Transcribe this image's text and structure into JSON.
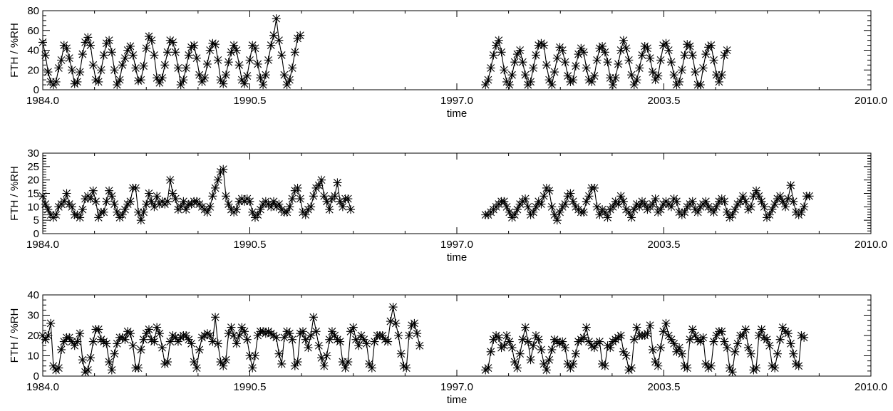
{
  "colors": {
    "line": "#000000",
    "marker": "#000000",
    "background": "#ffffff"
  },
  "chart_data": [
    {
      "type": "line",
      "marker": "asterisk",
      "xlabel": "time",
      "ylabel": "FTH / %RH",
      "xlim": [
        1984.0,
        2010.0
      ],
      "ylim": [
        0,
        80
      ],
      "xticks": [
        "1984.0",
        "1990.5",
        "1997.0",
        "2003.5",
        "2010.0"
      ],
      "yticks": [
        "0",
        "20",
        "40",
        "60",
        "80"
      ],
      "grid": false,
      "gap": [
        1997.1,
        1998.0
      ],
      "series": [
        {
          "x_start": 1984.0,
          "x_step": 0.0833,
          "segments": [
            {
              "start": 1984.0,
              "values": [
                48,
                35,
                18,
                8,
                5,
                8,
                22,
                30,
                45,
                42,
                32,
                20,
                6,
                8,
                18,
                36,
                48,
                53,
                45,
                25,
                10,
                8,
                20,
                35,
                47,
                50,
                38,
                20,
                5,
                10,
                25,
                32,
                40,
                44,
                35,
                22,
                9,
                10,
                24,
                42,
                54,
                50,
                35,
                12,
                7,
                12,
                25,
                38,
                50,
                48,
                38,
                22,
                5,
                10,
                22,
                35,
                43,
                45,
                32,
                15,
                8,
                12,
                26,
                40,
                47,
                46,
                30,
                10,
                6,
                15,
                28,
                38,
                45,
                40,
                25,
                10,
                6,
                14,
                30,
                45,
                42,
                26,
                12,
                5,
                15,
                30,
                45,
                55,
                72,
                50,
                35,
                15,
                5,
                10,
                22,
                38,
                52,
                55
              ]
            },
            {
              "start": 1997.9,
              "values": [
                5,
                10,
                22,
                35,
                45,
                50,
                38,
                20,
                8,
                5,
                15,
                28,
                36,
                40,
                28,
                15,
                5,
                8,
                22,
                35,
                45,
                47,
                45,
                25,
                10,
                5,
                18,
                32,
                43,
                40,
                28,
                14,
                8,
                10,
                24,
                36,
                42,
                38,
                22,
                10,
                8,
                14,
                30,
                42,
                44,
                38,
                28,
                12,
                5,
                12,
                26,
                40,
                50,
                42,
                30,
                15,
                5,
                10,
                22,
                35,
                44,
                42,
                32,
                18,
                10,
                14,
                30,
                45,
                47,
                40,
                28,
                15,
                5,
                8,
                20,
                35,
                46,
                44,
                35,
                18,
                5,
                5,
                22,
                36,
                43,
                45,
                30,
                15,
                8,
                15,
                35,
                40
              ]
            }
          ]
        }
      ]
    },
    {
      "type": "line",
      "marker": "asterisk",
      "xlabel": "time",
      "ylabel": "FTH / %RH",
      "xlim": [
        1984.0,
        2010.0
      ],
      "ylim": [
        0,
        30
      ],
      "xticks": [
        "1984.0",
        "1990.5",
        "1997.0",
        "2003.5",
        "2010.0"
      ],
      "yticks": [
        "0",
        "5",
        "10",
        "15",
        "20",
        "25",
        "30"
      ],
      "grid": false,
      "series": [
        {
          "segments": [
            {
              "start": 1984.0,
              "values": [
                14,
                11,
                9,
                7,
                6,
                7,
                10,
                11,
                12,
                15,
                11,
                10,
                7,
                7,
                6,
                9,
                13,
                14,
                13,
                16,
                12,
                6,
                8,
                8,
                12,
                16,
                14,
                11,
                8,
                6,
                7,
                9,
                11,
                12,
                17,
                17,
                8,
                5,
                8,
                11,
                15,
                12,
                10,
                14,
                11,
                12,
                11,
                12,
                20,
                15,
                13,
                9,
                10,
                12,
                9,
                11,
                11,
                12,
                12,
                11,
                10,
                9,
                8,
                10,
                14,
                17,
                20,
                23,
                24,
                14,
                11,
                9,
                8,
                9,
                12,
                13,
                12,
                13,
                12,
                8,
                6,
                7,
                9,
                11,
                12,
                11,
                10,
                12,
                10,
                11,
                9,
                8,
                8,
                10,
                13,
                16,
                17,
                13,
                8,
                7,
                9,
                10,
                14,
                17,
                18,
                20,
                14,
                12,
                9,
                13,
                14,
                19,
                12,
                10,
                13,
                13,
                9
              ]
            },
            {
              "start": 1997.9,
              "values": [
                7,
                7,
                8,
                9,
                10,
                11,
                12,
                12,
                10,
                8,
                6,
                7,
                9,
                11,
                12,
                13,
                10,
                7,
                8,
                10,
                12,
                11,
                14,
                17,
                16,
                10,
                7,
                5,
                8,
                10,
                11,
                14,
                15,
                12,
                10,
                9,
                8,
                8,
                12,
                14,
                17,
                17,
                10,
                7,
                9,
                8,
                6,
                9,
                10,
                12,
                11,
                14,
                12,
                9,
                8,
                6,
                9,
                11,
                10,
                12,
                11,
                9,
                10,
                11,
                13,
                8,
                9,
                11,
                12,
                11,
                10,
                13,
                12,
                8,
                7,
                8,
                10,
                11,
                12,
                9,
                8,
                10,
                11,
                12,
                10,
                9,
                8,
                10,
                12,
                13,
                12,
                8,
                6,
                7,
                9,
                11,
                12,
                14,
                12,
                9,
                10,
                14,
                16,
                14,
                12,
                10,
                6,
                7,
                9,
                11,
                13,
                14,
                12,
                10,
                13,
                18,
                12,
                8,
                7,
                8,
                10,
                14,
                14
              ]
            }
          ]
        }
      ]
    },
    {
      "type": "line",
      "marker": "asterisk",
      "xlabel": "time",
      "ylabel": "FTH / %RH",
      "xlim": [
        1984.0,
        2010.0
      ],
      "ylim": [
        0,
        40
      ],
      "xticks": [
        "1984.0",
        "1990.5",
        "1997.0",
        "2003.5",
        "2010.0"
      ],
      "yticks": [
        "0",
        "10",
        "20",
        "30",
        "40"
      ],
      "grid": false,
      "series": [
        {
          "segments": [
            {
              "start": 1984.0,
              "values": [
                20,
                18,
                20,
                26,
                5,
                3,
                4,
                13,
                17,
                19,
                19,
                17,
                15,
                17,
                21,
                8,
                2,
                3,
                9,
                17,
                23,
                23,
                18,
                17,
                16,
                7,
                3,
                11,
                16,
                19,
                19,
                18,
                22,
                21,
                15,
                4,
                4,
                13,
                18,
                21,
                23,
                18,
                17,
                24,
                21,
                14,
                6,
                7,
                17,
                20,
                19,
                17,
                19,
                20,
                20,
                18,
                16,
                7,
                4,
                13,
                19,
                20,
                21,
                20,
                17,
                29,
                16,
                7,
                5,
                8,
                21,
                24,
                20,
                16,
                20,
                24,
                22,
                18,
                10,
                4,
                10,
                20,
                22,
                22,
                21,
                22,
                21,
                20,
                19,
                11,
                6,
                19,
                22,
                21,
                18,
                5,
                7,
                21,
                22,
                18,
                14,
                20,
                29,
                22,
                15,
                9,
                5,
                10,
                18,
                22,
                20,
                18,
                17,
                7,
                4,
                7,
                22,
                24,
                18,
                15,
                20,
                18,
                16,
                6,
                4,
                17,
                20,
                20,
                20,
                18,
                17,
                27,
                34,
                26,
                20,
                11,
                5,
                4,
                20,
                25,
                26,
                21,
                15
              ]
            },
            {
              "start": 1997.9,
              "values": [
                3,
                4,
                12,
                18,
                20,
                19,
                14,
                15,
                20,
                17,
                14,
                7,
                4,
                11,
                18,
                24,
                17,
                8,
                15,
                20,
                18,
                13,
                6,
                3,
                8,
                13,
                18,
                17,
                16,
                17,
                14,
                6,
                4,
                6,
                11,
                17,
                18,
                19,
                24,
                17,
                15,
                14,
                16,
                17,
                6,
                5,
                15,
                14,
                17,
                18,
                19,
                20,
                12,
                10,
                3,
                4,
                18,
                24,
                20,
                20,
                20,
                21,
                25,
                13,
                7,
                5,
                14,
                22,
                26,
                20,
                18,
                16,
                12,
                14,
                11,
                5,
                4,
                18,
                23,
                20,
                18,
                17,
                19,
                6,
                4,
                5,
                17,
                20,
                22,
                22,
                17,
                14,
                4,
                2,
                12,
                16,
                20,
                20,
                23,
                14,
                11,
                3,
                4,
                20,
                23,
                19,
                18,
                15,
                5,
                4,
                11,
                18,
                24,
                22,
                21,
                16,
                11,
                6,
                5,
                20,
                19
              ]
            }
          ]
        }
      ]
    }
  ]
}
